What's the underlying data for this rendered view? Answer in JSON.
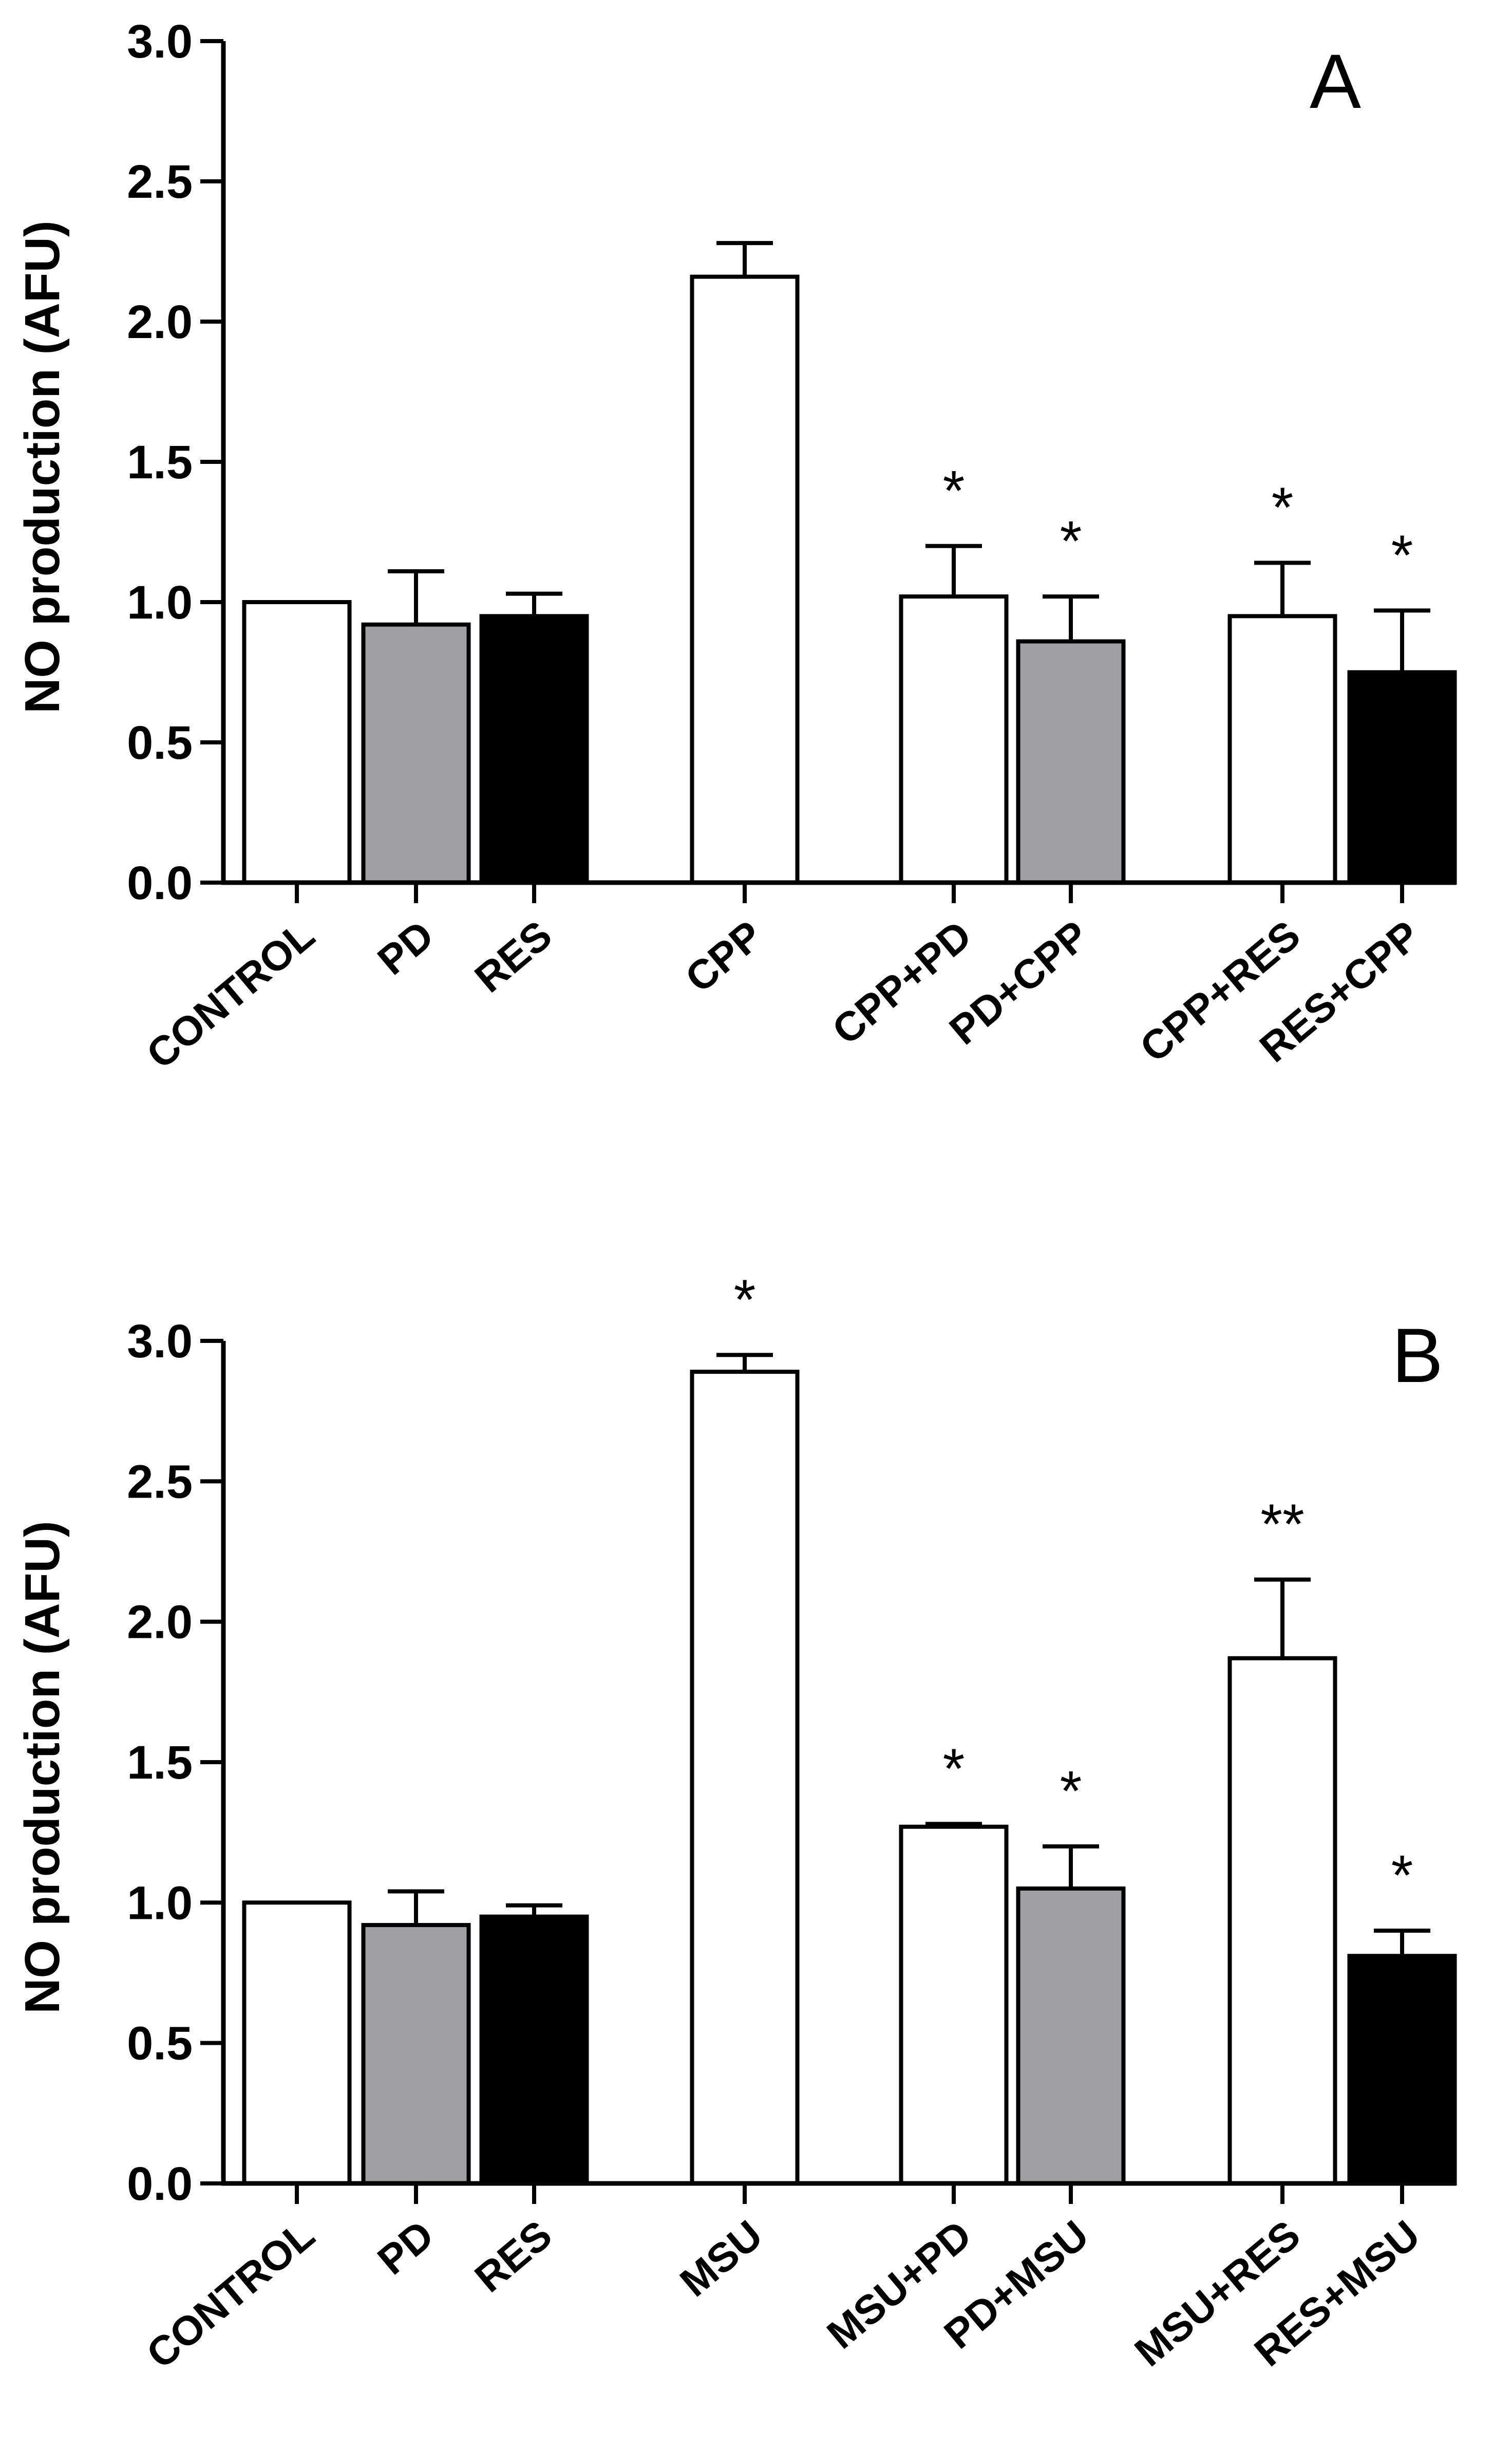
{
  "chart_data": [
    {
      "type": "bar",
      "panel_label": "A",
      "ylabel": "NO production (AFU)",
      "ylim": [
        0,
        3.0
      ],
      "yticks": [
        "0.0",
        "0.5",
        "1.0",
        "1.5",
        "2.0",
        "2.5",
        "3.0"
      ],
      "yticks_values": [
        0,
        0.5,
        1.0,
        1.5,
        2.0,
        2.5,
        3.0
      ],
      "groups": [
        {
          "categories": [
            {
              "label": "CONTROL",
              "value": 1.0,
              "error": 0.0,
              "color": "#ffffff",
              "sig": ""
            },
            {
              "label": "PD",
              "value": 0.92,
              "error": 0.19,
              "color": "#a0a0a4",
              "sig": ""
            },
            {
              "label": "RES",
              "value": 0.95,
              "error": 0.08,
              "color": "#000000",
              "sig": ""
            }
          ]
        },
        {
          "categories": [
            {
              "label": "CPP",
              "value": 2.16,
              "error": 0.12,
              "color": "#ffffff",
              "sig": ""
            }
          ]
        },
        {
          "categories": [
            {
              "label": "CPP+PD",
              "value": 1.02,
              "error": 0.18,
              "color": "#ffffff",
              "sig": "*"
            },
            {
              "label": "PD+CPP",
              "value": 0.86,
              "error": 0.16,
              "color": "#a0a0a4",
              "sig": "*"
            }
          ]
        },
        {
          "categories": [
            {
              "label": "CPP+RES",
              "value": 0.95,
              "error": 0.19,
              "color": "#ffffff",
              "sig": "*"
            },
            {
              "label": "RES+CPP",
              "value": 0.75,
              "error": 0.22,
              "color": "#000000",
              "sig": "*"
            }
          ]
        }
      ]
    },
    {
      "type": "bar",
      "panel_label": "B",
      "ylabel": "NO production (AFU)",
      "ylim": [
        0,
        3.0
      ],
      "yticks": [
        "0.0",
        "0.5",
        "1.0",
        "1.5",
        "2.0",
        "2.5",
        "3.0"
      ],
      "yticks_values": [
        0,
        0.5,
        1.0,
        1.5,
        2.0,
        2.5,
        3.0
      ],
      "groups": [
        {
          "categories": [
            {
              "label": "CONTROL",
              "value": 1.0,
              "error": 0.0,
              "color": "#ffffff",
              "sig": ""
            },
            {
              "label": "PD",
              "value": 0.92,
              "error": 0.12,
              "color": "#a0a0a4",
              "sig": ""
            },
            {
              "label": "RES",
              "value": 0.95,
              "error": 0.04,
              "color": "#000000",
              "sig": ""
            }
          ]
        },
        {
          "categories": [
            {
              "label": "MSU",
              "value": 2.89,
              "error": 0.06,
              "color": "#ffffff",
              "sig": "*"
            }
          ]
        },
        {
          "categories": [
            {
              "label": "MSU+PD",
              "value": 1.27,
              "error": 0.01,
              "color": "#ffffff",
              "sig": "*"
            },
            {
              "label": "PD+MSU",
              "value": 1.05,
              "error": 0.15,
              "color": "#a0a0a4",
              "sig": "*"
            }
          ]
        },
        {
          "categories": [
            {
              "label": "MSU+RES",
              "value": 1.87,
              "error": 0.28,
              "color": "#ffffff",
              "sig": "**"
            },
            {
              "label": "RES+MSU",
              "value": 0.81,
              "error": 0.09,
              "color": "#000000",
              "sig": "*"
            }
          ]
        }
      ]
    }
  ]
}
